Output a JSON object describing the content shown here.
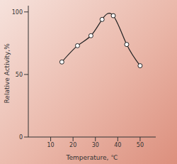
{
  "chart_data": {
    "type": "line",
    "x_label": "Temperature, ℃",
    "y_label": "Relative Activity,%",
    "x": [
      15,
      22,
      28,
      33,
      38,
      44,
      50
    ],
    "values": [
      60,
      73,
      81,
      94,
      97,
      74,
      57
    ],
    "color": "#222222",
    "marker": "circle",
    "line_style": "solid",
    "xlim": [
      0,
      57
    ],
    "xticks": [
      10,
      20,
      30,
      40,
      50
    ],
    "ylim": [
      0,
      105
    ],
    "yticks": [
      0,
      50,
      100
    ],
    "grid": false
  }
}
